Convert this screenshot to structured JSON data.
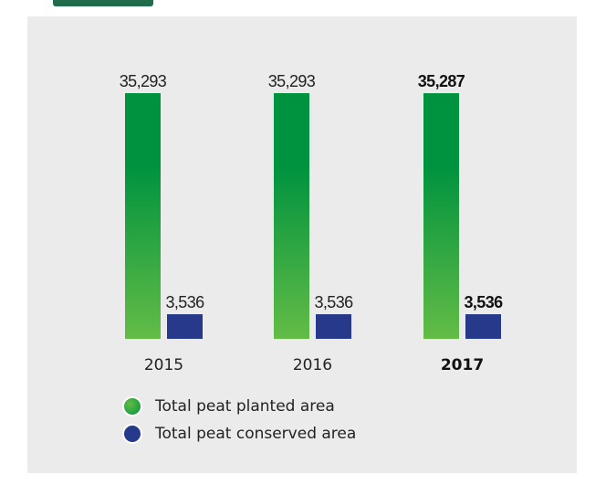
{
  "colors": {
    "planted_top": "#00933f",
    "planted_bottom": "#63bc46",
    "conserved": "#27398a",
    "background": "#ebebeb"
  },
  "chart_data": {
    "type": "bar",
    "categories": [
      "2015",
      "2016",
      "2017"
    ],
    "highlight_category": "2017",
    "series": [
      {
        "name": "Total peat planted area",
        "values": [
          35293,
          35293,
          35287
        ],
        "labels": [
          "35,293",
          "35,293",
          "35,287"
        ]
      },
      {
        "name": "Total peat conserved area",
        "values": [
          3536,
          3536,
          3536
        ],
        "labels": [
          "3,536",
          "3,536",
          "3,536"
        ]
      }
    ],
    "legend_position": "bottom-left",
    "grid": false
  },
  "legend": [
    {
      "label": "Total peat planted area",
      "icon": "green-gradient-circle"
    },
    {
      "label": "Total peat conserved area",
      "icon": "navy-circle"
    }
  ]
}
